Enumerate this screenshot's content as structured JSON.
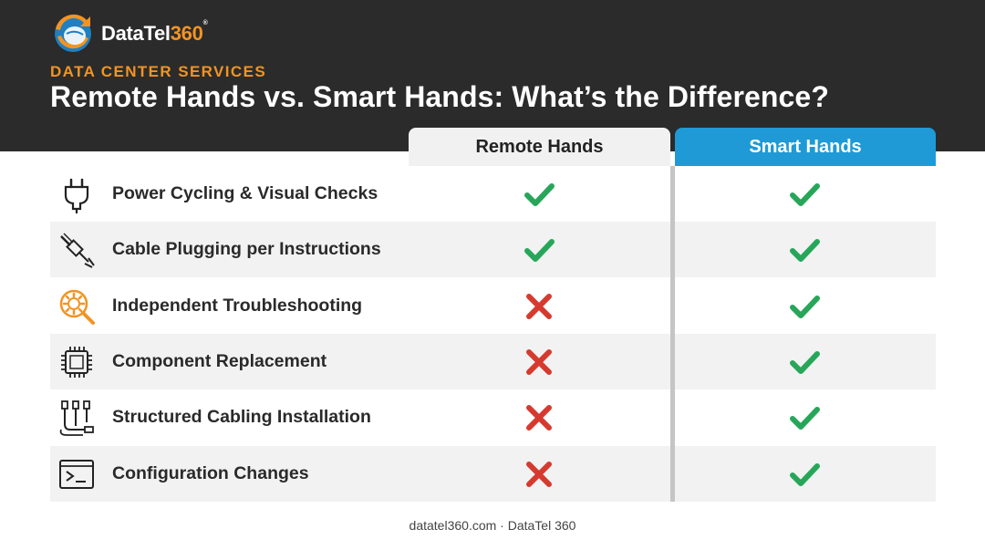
{
  "brand": {
    "name_text": "DataTel",
    "name_number": "360",
    "trademark": "®",
    "colors": {
      "accent": "#f29423",
      "blue": "#1f9ad6",
      "dark": "#2b2b2b"
    }
  },
  "header": {
    "eyebrow": "DATA CENTER SERVICES",
    "title": "Remote Hands vs. Smart Hands: What’s the Difference?"
  },
  "columns": {
    "remote": "Remote Hands",
    "smart": "Smart Hands"
  },
  "rows": [
    {
      "label": "Power Cycling & Visual Checks",
      "icon": "power-plug-icon",
      "remote": "check",
      "smart": "check"
    },
    {
      "label": "Cable Plugging per Instructions",
      "icon": "ethernet-cable-icon",
      "remote": "check",
      "smart": "check"
    },
    {
      "label": "Independent Troubleshooting",
      "icon": "gear-magnifier-icon",
      "remote": "cross",
      "smart": "check"
    },
    {
      "label": "Component Replacement",
      "icon": "chip-icon",
      "remote": "cross",
      "smart": "check"
    },
    {
      "label": "Structured Cabling Installation",
      "icon": "cable-bundle-icon",
      "remote": "cross",
      "smart": "check"
    },
    {
      "label": "Configuration Changes",
      "icon": "terminal-icon",
      "remote": "cross",
      "smart": "check"
    }
  ],
  "footer": "datatel360.com · DataTel 360"
}
